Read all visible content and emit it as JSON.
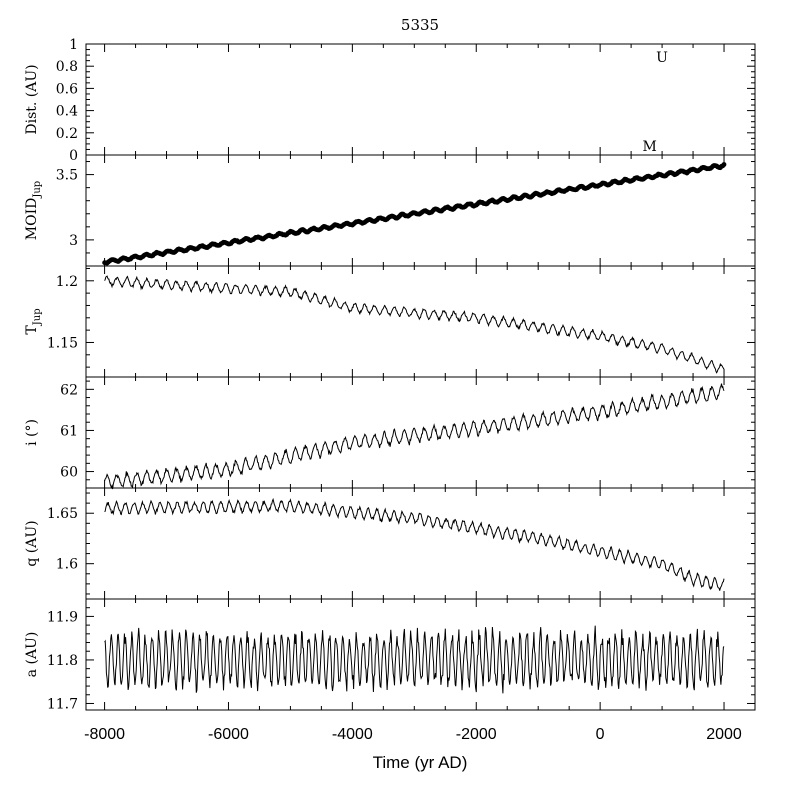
{
  "chart_data": {
    "type": "line",
    "title": "5335",
    "xlabel": "Time (yr AD)",
    "xlim": [
      -8300,
      2500
    ],
    "xticks": [
      -8000,
      -6000,
      -4000,
      -2000,
      0,
      2000
    ],
    "xtick_labels": [
      "-8000",
      "-6000",
      "-4000",
      "-2000",
      "0",
      "2000"
    ],
    "panels": [
      {
        "id": "dist",
        "ylabel": "Dist. (AU)",
        "ylim": [
          0,
          1
        ],
        "yticks": [
          0,
          0.2,
          0.4,
          0.6,
          0.8,
          1
        ],
        "ytick_labels": [
          "0",
          "0.2",
          "0.4",
          "0.6",
          "0.8",
          "1"
        ],
        "style": "markers",
        "markers": [
          {
            "label": "U",
            "x": 1000,
            "y": 0.8
          },
          {
            "label": "M",
            "x": 800,
            "y": 0.0
          }
        ]
      },
      {
        "id": "moid",
        "ylabel": "MOID",
        "ylabel_sub": "Jup",
        "ylim": [
          2.8,
          3.65
        ],
        "yticks": [
          3,
          3.5
        ],
        "ytick_labels": [
          "3",
          "3.5"
        ],
        "style": "dots",
        "trend": {
          "x": [
            -8000,
            2000
          ],
          "y": [
            2.83,
            3.57
          ]
        },
        "oscillation": {
          "amplitude": 0.012,
          "period": 180
        }
      },
      {
        "id": "tjup",
        "ylabel": "T",
        "ylabel_sub": "Jup",
        "ylim": [
          1.122,
          1.212
        ],
        "yticks": [
          1.15,
          1.2
        ],
        "ytick_labels": [
          "1.15",
          "1.2"
        ],
        "style": "line",
        "trend": {
          "x": [
            -8000,
            -5000,
            -4000,
            -2000,
            0,
            1000,
            2000
          ],
          "y": [
            1.2,
            1.191,
            1.178,
            1.17,
            1.155,
            1.145,
            1.128
          ]
        },
        "oscillation": {
          "amplitude": 0.004,
          "period": 160
        }
      },
      {
        "id": "incl",
        "ylabel": "i (°)",
        "ylim": [
          59.6,
          62.3
        ],
        "yticks": [
          60,
          61,
          62
        ],
        "ytick_labels": [
          "60",
          "61",
          "62"
        ],
        "style": "line",
        "trend": {
          "x": [
            -8000,
            -6000,
            -4000,
            -2000,
            0,
            2000
          ],
          "y": [
            59.75,
            60.05,
            60.7,
            61.05,
            61.45,
            61.95
          ]
        },
        "oscillation": {
          "amplitude": 0.18,
          "period": 160
        }
      },
      {
        "id": "q",
        "ylabel": "q (AU)",
        "ylim": [
          1.565,
          1.675
        ],
        "yticks": [
          1.6,
          1.65
        ],
        "ytick_labels": [
          "1.6",
          "1.65"
        ],
        "style": "line",
        "trend": {
          "x": [
            -8000,
            -5000,
            -3000,
            -1000,
            0,
            1000,
            1500,
            2000
          ],
          "y": [
            1.655,
            1.657,
            1.645,
            1.625,
            1.612,
            1.6,
            1.585,
            1.578
          ]
        },
        "oscillation": {
          "amplitude": 0.006,
          "period": 140
        }
      },
      {
        "id": "a",
        "ylabel": "a (AU)",
        "ylim": [
          11.685,
          11.94
        ],
        "yticks": [
          11.7,
          11.8,
          11.9
        ],
        "ytick_labels": [
          "11.7",
          "11.8",
          "11.9"
        ],
        "style": "line",
        "trend": {
          "x": [
            -8000,
            2000
          ],
          "y": [
            11.8,
            11.8
          ]
        },
        "oscillation": {
          "amplitude": 0.065,
          "period": 110
        }
      }
    ]
  }
}
